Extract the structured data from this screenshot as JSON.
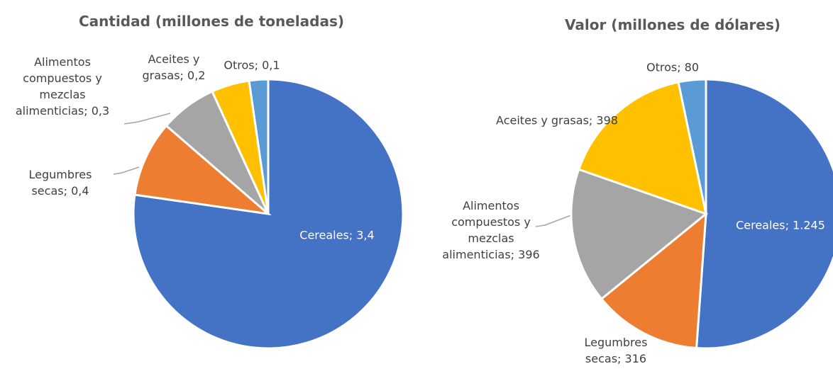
{
  "chart_data": [
    {
      "type": "pie",
      "title": "Cantidad (millones de toneladas)",
      "categories": [
        "Cereales",
        "Legumbres secas",
        "Alimentos compuestos y mezclas alimenticias",
        "Aceites y grasas",
        "Otros"
      ],
      "values": [
        3.4,
        0.4,
        0.3,
        0.2,
        0.1
      ],
      "value_labels": [
        "3,4",
        "0,4",
        "0,3",
        "0,2",
        "0,1"
      ],
      "label_separator": "; ",
      "colors": [
        "#4472c4",
        "#ed7d31",
        "#a5a5a5",
        "#ffc000",
        "#5b9bd5"
      ]
    },
    {
      "type": "pie",
      "title": "Valor (millones de dólares)",
      "categories": [
        "Cereales",
        "Legumbres secas",
        "Alimentos compuestos y mezclas alimenticias",
        "Aceites y grasas",
        "Otros"
      ],
      "values": [
        1245,
        316,
        396,
        398,
        80
      ],
      "value_labels": [
        "1.245",
        "316",
        "396",
        "398",
        "80"
      ],
      "label_separator": "; ",
      "colors": [
        "#4472c4",
        "#ed7d31",
        "#a5a5a5",
        "#ffc000",
        "#5b9bd5"
      ]
    }
  ]
}
